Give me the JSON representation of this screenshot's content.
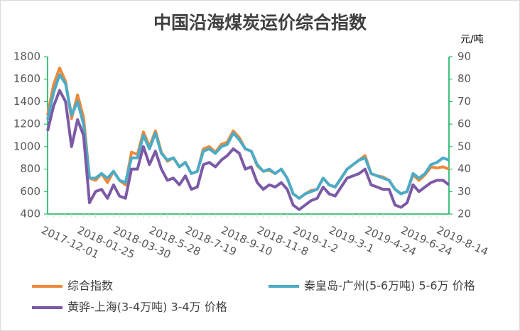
{
  "chart_data": {
    "type": "line",
    "title": "中国沿海煤炭运价综合指数",
    "y2_label": "元/吨",
    "categories": [
      "2017-12-01",
      null,
      null,
      null,
      null,
      null,
      "2018-01-25",
      null,
      null,
      null,
      null,
      null,
      "2018-03-30",
      null,
      null,
      null,
      null,
      null,
      "2018-5-28",
      null,
      null,
      null,
      null,
      null,
      "2018-7-19",
      null,
      null,
      null,
      null,
      null,
      "2018-9-10",
      null,
      null,
      null,
      null,
      null,
      "2018-11-8",
      null,
      null,
      null,
      null,
      null,
      "2019-1-2",
      null,
      null,
      null,
      null,
      null,
      "2019-3-1",
      null,
      null,
      null,
      null,
      null,
      "2019-4-24",
      null,
      null,
      null,
      null,
      null,
      "2019-6-24",
      null,
      null,
      null,
      null,
      null,
      "2019-8-14",
      null
    ],
    "ylim": [
      400,
      1800
    ],
    "yticks": [
      400,
      600,
      800,
      1000,
      1200,
      1400,
      1600,
      1800
    ],
    "y2lim": [
      20,
      90
    ],
    "y2ticks": [
      20,
      30,
      40,
      50,
      60,
      70,
      80,
      90
    ],
    "legend": "bottom",
    "axis_color": "#00b050",
    "series": [
      {
        "name": "综合指数",
        "color": "#f0883a",
        "values": [
          1280,
          1550,
          1700,
          1580,
          1250,
          1460,
          1260,
          720,
          700,
          760,
          680,
          780,
          700,
          660,
          950,
          930,
          1130,
          1000,
          1140,
          950,
          870,
          900,
          820,
          860,
          760,
          780,
          980,
          1000,
          950,
          1020,
          1040,
          1140,
          1080,
          980,
          960,
          830,
          780,
          790,
          760,
          800,
          720,
          580,
          540,
          580,
          610,
          620,
          720,
          660,
          640,
          720,
          800,
          840,
          880,
          920,
          760,
          740,
          730,
          700,
          620,
          580,
          600,
          750,
          700,
          750,
          820,
          810,
          820,
          800
        ]
      },
      {
        "name": "秦皇岛-广州(5-6万吨) 5-6万 价格",
        "color": "#4bacc6",
        "axis": "y2",
        "values": [
          62,
          74,
          82,
          78,
          64,
          70,
          60,
          36,
          36,
          38,
          36,
          39,
          35,
          34,
          45,
          45,
          55,
          49,
          56,
          47,
          44,
          45,
          41,
          43,
          38,
          39,
          48,
          49,
          47,
          50,
          51,
          56,
          53,
          49,
          48,
          42,
          39,
          40,
          38,
          40,
          36,
          29,
          27,
          29,
          30,
          31,
          36,
          33,
          32,
          36,
          40,
          42,
          44,
          45,
          38,
          37,
          36,
          35,
          31,
          29,
          30,
          38,
          36,
          38,
          42,
          43,
          45,
          44
        ]
      },
      {
        "name": "黄骅-上海(3-4万吨) 3-4万 价格",
        "color": "#7b5aa6",
        "axis": "y2",
        "values": [
          57,
          68,
          75,
          70,
          50,
          62,
          55,
          25,
          30,
          31,
          27,
          33,
          28,
          27,
          40,
          40,
          50,
          42,
          48,
          40,
          35,
          36,
          33,
          37,
          31,
          32,
          42,
          43,
          41,
          44,
          46,
          49,
          47,
          40,
          41,
          34,
          31,
          33,
          32,
          34,
          31,
          24,
          22,
          24,
          26,
          27,
          32,
          29,
          28,
          32,
          36,
          37,
          38,
          40,
          33,
          32,
          31,
          31,
          24,
          23,
          25,
          33,
          30,
          32,
          34,
          35,
          35,
          33
        ]
      }
    ]
  }
}
